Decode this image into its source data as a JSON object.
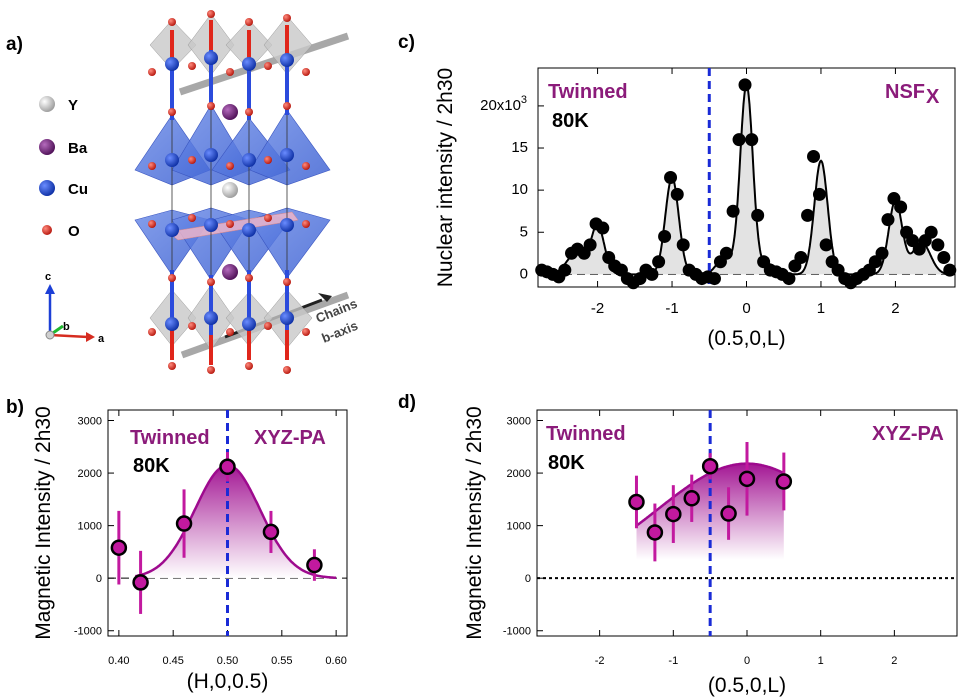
{
  "panels": {
    "a": {
      "label": "a)",
      "legend": [
        {
          "symbol": "Y",
          "color": "#b5b5b5"
        },
        {
          "symbol": "Ba",
          "color": "#6e1f74"
        },
        {
          "symbol": "Cu",
          "color": "#1a43c8"
        },
        {
          "symbol": "O",
          "color": "#e0261b"
        }
      ],
      "axes": {
        "c": "c",
        "b": "b",
        "a": "a"
      },
      "chains_line1": "Chains",
      "chains_line2": "b-axis"
    },
    "b": {
      "label": "b)"
    },
    "c": {
      "label": "c)"
    },
    "d": {
      "label": "d)"
    }
  },
  "colors": {
    "magenta": "#9e0a8e",
    "blue_dash": "#1a2bd6",
    "marker": "#c2199f",
    "dark_magenta": "#8b1b7a"
  },
  "chart_data": [
    {
      "id": "c",
      "type": "scatter",
      "xlabel": "(0.5,0,L)",
      "ylabel": "Nuclear intensity / 2h30",
      "xlim": [
        -2.8,
        2.8
      ],
      "ylim": [
        -1.5,
        24.5
      ],
      "xticks": [
        -2,
        -1,
        0,
        1,
        2
      ],
      "yticks": [
        0,
        5,
        10,
        15,
        20
      ],
      "ytick_labels": [
        "0",
        "5",
        "10",
        "15",
        "20x10"
      ],
      "ytick_sup": "3",
      "annotation_left": "Twinned",
      "annotation_left2": "80K",
      "annotation_right": "NSF",
      "annotation_right_sub": "X",
      "vline": -0.5,
      "series": [
        {
          "x": [
            -2.75,
            -2.68,
            -2.6,
            -2.52,
            -2.44,
            -2.35,
            -2.27,
            -2.18,
            -2.1,
            -2.02,
            -1.93,
            -1.85,
            -1.77,
            -1.68,
            -1.6,
            -1.52,
            -1.43,
            -1.35,
            -1.27,
            -1.18,
            -1.1,
            -1.02,
            -0.93,
            -0.85,
            -0.77,
            -0.68,
            -0.6,
            -0.52,
            -0.43,
            -0.35,
            -0.27,
            -0.18,
            -0.1,
            -0.02,
            0.07,
            0.15,
            0.23,
            0.32,
            0.4,
            0.48,
            0.57,
            0.65,
            0.73,
            0.82,
            0.9,
            0.98,
            1.07,
            1.15,
            1.23,
            1.32,
            1.4,
            1.48,
            1.57,
            1.65,
            1.73,
            1.82,
            1.9,
            1.98,
            2.07,
            2.15,
            2.23,
            2.32,
            2.4,
            2.48,
            2.57,
            2.65,
            2.73
          ],
          "y": [
            0.5,
            0.3,
            0.0,
            -0.3,
            0.5,
            2.5,
            3.0,
            2.5,
            3.5,
            6.0,
            5.5,
            2.0,
            1.0,
            0.5,
            -0.5,
            -1.0,
            -0.5,
            0.5,
            0.0,
            1.5,
            4.5,
            11.5,
            9.5,
            3.5,
            0.5,
            0.0,
            -0.5,
            -0.3,
            -0.5,
            1.5,
            2.5,
            7.5,
            16.0,
            22.5,
            16.0,
            7.0,
            1.5,
            0.5,
            0.3,
            0.0,
            -0.5,
            1.0,
            2.0,
            7.0,
            14.0,
            9.5,
            3.5,
            1.5,
            0.5,
            -0.5,
            -1.0,
            -0.5,
            0.0,
            0.5,
            1.5,
            2.5,
            6.5,
            9.0,
            8.0,
            5.0,
            4.0,
            3.0,
            4.0,
            5.0,
            3.5,
            2.0,
            0.5
          ]
        }
      ]
    },
    {
      "id": "b",
      "type": "scatter",
      "xlabel": "(H,0,0.5)",
      "ylabel": "Magnetic Intensity / 2h30",
      "xlim": [
        0.39,
        0.61
      ],
      "ylim": [
        -1100,
        3200
      ],
      "xticks": [
        0.4,
        0.45,
        0.5,
        0.55,
        0.6
      ],
      "xtick_labels": [
        "0.40",
        "0.45",
        "0.50",
        "0.55",
        "0.60"
      ],
      "yticks": [
        -1000,
        0,
        1000,
        2000,
        3000
      ],
      "annotation_left": "Twinned",
      "annotation_left2": "80K",
      "annotation_right": "XYZ-PA",
      "vline": 0.5,
      "fit": {
        "type": "gaussian",
        "amplitude": 2150,
        "center": 0.5,
        "sigma": 0.03,
        "xrange": [
          0.415,
          0.6
        ]
      },
      "series": [
        {
          "x": [
            0.4,
            0.42,
            0.46,
            0.5,
            0.54,
            0.58
          ],
          "y": [
            580,
            -80,
            1040,
            2120,
            880,
            250
          ],
          "err": [
            700,
            600,
            650,
            280,
            400,
            300
          ]
        }
      ]
    },
    {
      "id": "d",
      "type": "scatter",
      "xlabel": "(0.5,0,L)",
      "ylabel": "Magnetic Intensity / 2h30",
      "xlim": [
        -2.85,
        2.85
      ],
      "ylim": [
        -1100,
        3200
      ],
      "xticks": [
        -2,
        -1,
        0,
        1,
        2
      ],
      "yticks": [
        -1000,
        0,
        1000,
        2000,
        3000
      ],
      "annotation_left": "Twinned",
      "annotation_left2": "80K",
      "annotation_right": "XYZ-PA",
      "vline": -0.5,
      "fit": {
        "type": "broad",
        "amplitude": 2180,
        "center": 0.0,
        "sigma": 1.2,
        "xrange": [
          -1.5,
          0.5
        ]
      },
      "series": [
        {
          "x": [
            -1.5,
            -1.25,
            -1.0,
            -0.75,
            -0.5,
            -0.25,
            0.0,
            0.5
          ],
          "y": [
            1450,
            870,
            1220,
            1520,
            2130,
            1230,
            1890,
            1840
          ],
          "err": [
            500,
            550,
            550,
            450,
            250,
            500,
            700,
            550
          ]
        }
      ]
    }
  ]
}
